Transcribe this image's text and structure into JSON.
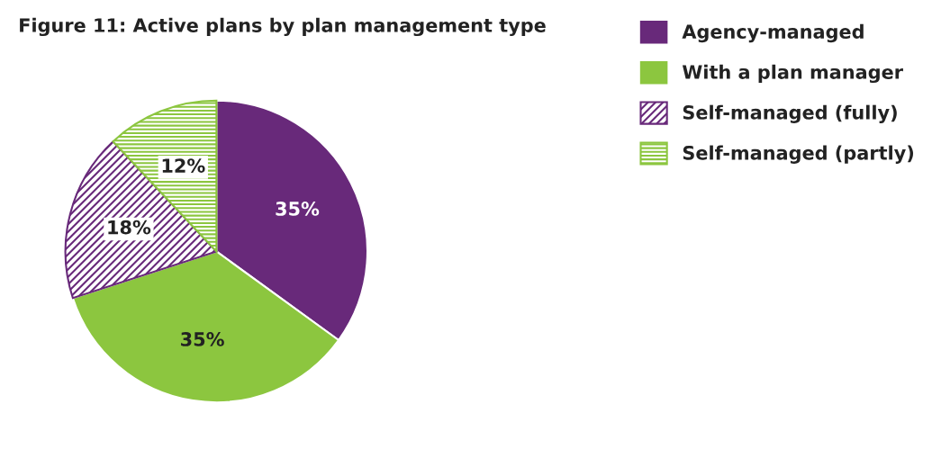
{
  "chart_data": {
    "type": "pie",
    "title": "Figure 11: Active plans by plan management type",
    "categories": [
      "Agency-managed",
      "With a plan manager",
      "Self-managed (fully)",
      "Self-managed (partly)"
    ],
    "values": [
      35,
      35,
      18,
      12
    ],
    "colors": [
      "#68297a",
      "#8cc63f",
      "#68297a",
      "#8cc63f"
    ],
    "value_labels": [
      "35%",
      "35%",
      "18%",
      "12%"
    ],
    "legend": "top right"
  }
}
